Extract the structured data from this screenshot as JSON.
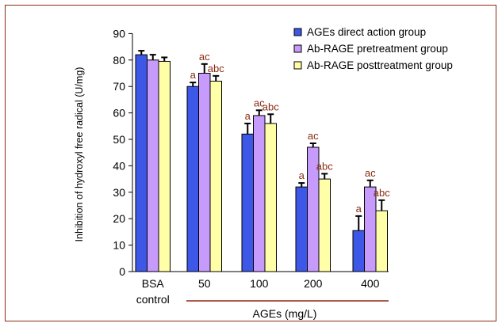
{
  "chart_data": {
    "type": "bar",
    "ylabel": "Inhibition of hydroxyl free radical (U/mg)",
    "xlabel": "AGEs (mg/L)",
    "ylim": [
      0,
      90
    ],
    "yticks": [
      0,
      10,
      20,
      30,
      40,
      50,
      60,
      70,
      80,
      90
    ],
    "grid": false,
    "legend_position": "top-right",
    "categories": [
      {
        "lines": [
          "BSA",
          "control"
        ],
        "underlined": false
      },
      {
        "lines": [
          "50"
        ],
        "underlined": true
      },
      {
        "lines": [
          "100"
        ],
        "underlined": true
      },
      {
        "lines": [
          "200"
        ],
        "underlined": true
      },
      {
        "lines": [
          "400"
        ],
        "underlined": true
      }
    ],
    "series": [
      {
        "name": "AGEs direct action group",
        "color": "#3d57e6",
        "values": [
          82,
          70,
          52,
          32,
          15.5
        ],
        "errors": [
          1.5,
          1.5,
          4,
          1.5,
          5.5
        ],
        "labels": [
          "",
          "a",
          "a",
          "a",
          "a"
        ]
      },
      {
        "name": "Ab-RAGE pretreatment group",
        "color": "#c79bfb",
        "values": [
          80,
          75,
          59,
          47,
          32
        ],
        "errors": [
          2,
          3.5,
          2,
          1.5,
          2.5
        ],
        "labels": [
          "",
          "ac",
          "ac",
          "ac",
          "ac"
        ]
      },
      {
        "name": "Ab-RAGE posttreatment group",
        "color": "#ffffa8",
        "values": [
          79.5,
          72,
          56,
          35,
          23
        ],
        "errors": [
          1.5,
          2,
          3.5,
          2,
          4
        ],
        "labels": [
          "",
          "abc",
          "abc",
          "abc",
          "abc"
        ]
      }
    ]
  }
}
